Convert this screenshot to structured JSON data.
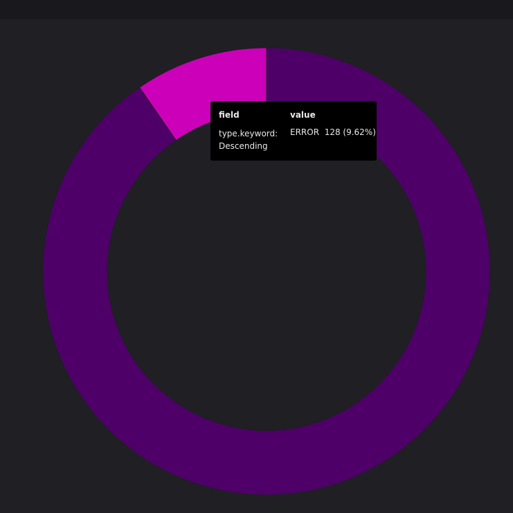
{
  "chart_data": {
    "type": "pie",
    "categories": [
      "ERROR",
      null
    ],
    "values": [
      128,
      1203
    ],
    "value_labels": [
      "128 (9.62%)",
      null
    ],
    "colors": [
      "#cc00b8",
      "#4e0068"
    ],
    "tooltip": {
      "headers": [
        "field",
        "value"
      ],
      "field": "type.keyword: Descending"
    }
  }
}
